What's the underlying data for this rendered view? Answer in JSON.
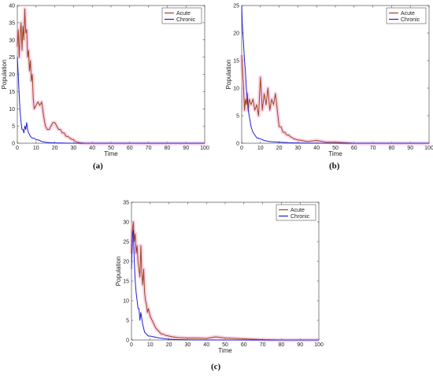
{
  "panels": [
    {
      "id": "a",
      "caption": "(a)",
      "colors": {
        "acute": "#a0451e",
        "chronic": "#1f1fd6",
        "band": "#f2b3d8"
      },
      "chart_data": {
        "type": "line",
        "xlabel": "Time",
        "ylabel": "Population",
        "xlim": [
          0,
          100
        ],
        "ylim": [
          0,
          40
        ],
        "xticks": [
          0,
          10,
          20,
          30,
          40,
          50,
          60,
          70,
          80,
          90,
          100
        ],
        "yticks": [
          0,
          5,
          10,
          15,
          20,
          25,
          30,
          35,
          40
        ],
        "legend": "top-right",
        "series": [
          {
            "name": "Acute",
            "color": "#a0451e",
            "x": [
              0,
              0.5,
              1,
              1.5,
              2,
              2.5,
              3,
              3.5,
              4,
              4.5,
              5,
              5.5,
              6,
              6.5,
              7,
              7.5,
              8,
              8.5,
              9,
              10,
              11,
              12,
              13,
              14,
              15,
              16,
              17,
              18,
              19,
              20,
              21,
              22,
              23,
              24,
              25,
              26,
              27,
              28,
              29,
              30,
              31,
              32,
              34,
              36,
              40,
              50,
              60,
              70,
              80,
              90,
              100
            ],
            "y": [
              28,
              33,
              25,
              31,
              35,
              27,
              34,
              30,
              39,
              32,
              33,
              25,
              27,
              21,
              24,
              18,
              20,
              13,
              10,
              11,
              12,
              11,
              12,
              8,
              5,
              4,
              4,
              5,
              6,
              6,
              5,
              4,
              4,
              3,
              3,
              2,
              2,
              1.5,
              1.2,
              1,
              0.5,
              0.3,
              0.1,
              0,
              0,
              0,
              0,
              0,
              0,
              0,
              0
            ]
          },
          {
            "name": "Chronic",
            "color": "#1f1fd6",
            "x": [
              0,
              0.5,
              1,
              1.5,
              2,
              2.5,
              3,
              3.5,
              4,
              4.5,
              5,
              5.5,
              6,
              7,
              8,
              9,
              10,
              11,
              12,
              13,
              14,
              15,
              17,
              20,
              25,
              30,
              40,
              50,
              60,
              70,
              80,
              90,
              100
            ],
            "y": [
              25,
              20,
              14,
              9,
              6,
              4,
              4,
              3,
              5,
              4,
              6,
              4,
              3,
              2,
              1.5,
              1.5,
              1,
              1,
              0.8,
              0.5,
              0.4,
              0.3,
              0.2,
              0.1,
              0.05,
              0,
              0,
              0,
              0,
              0,
              0,
              0,
              0
            ]
          }
        ]
      }
    },
    {
      "id": "b",
      "caption": "(b)",
      "colors": {
        "acute": "#a0451e",
        "chronic": "#1f1fd6",
        "band": "#f2b3d8"
      },
      "chart_data": {
        "type": "line",
        "xlabel": "Time",
        "ylabel": "Population",
        "xlim": [
          0,
          100
        ],
        "ylim": [
          0,
          25
        ],
        "xticks": [
          0,
          10,
          20,
          30,
          40,
          50,
          60,
          70,
          80,
          90,
          100
        ],
        "yticks": [
          0,
          5,
          10,
          15,
          20,
          25
        ],
        "legend": "top-right",
        "series": [
          {
            "name": "Acute",
            "color": "#a0451e",
            "x": [
              0,
              0.5,
              1,
              1.5,
              2,
              2.5,
              3,
              3.5,
              4,
              5,
              6,
              7,
              8,
              9,
              10,
              11,
              12,
              13,
              14,
              15,
              16,
              17,
              18,
              19,
              20,
              21,
              22,
              23,
              24,
              25,
              26,
              27,
              28,
              30,
              32,
              35,
              40,
              45,
              50,
              60,
              70,
              80,
              90,
              100
            ],
            "y": [
              16,
              13,
              10,
              6,
              8,
              7,
              9,
              6,
              8,
              7,
              8,
              6,
              7,
              5,
              12,
              6,
              9,
              7,
              10,
              6,
              8,
              7,
              9,
              6,
              3,
              3,
              2,
              2,
              1.5,
              1.5,
              1.2,
              1,
              0.8,
              0.6,
              0.5,
              0.3,
              0.5,
              0.2,
              0.2,
              0,
              0,
              0,
              0,
              0
            ]
          },
          {
            "name": "Chronic",
            "color": "#1f1fd6",
            "x": [
              0,
              0.3,
              0.6,
              1,
              1.5,
              2,
              2.5,
              3,
              3.5,
              4,
              5,
              6,
              7,
              8,
              10,
              12,
              15,
              20,
              25,
              30,
              40,
              50,
              60,
              70,
              80,
              90,
              100
            ],
            "y": [
              25,
              22,
              20,
              18,
              15,
              13,
              10,
              8,
              6,
              5,
              3,
              2,
              1.5,
              1,
              0.8,
              0.5,
              0.3,
              0.2,
              0.1,
              0.05,
              0,
              0,
              0,
              0,
              0,
              0,
              0
            ]
          }
        ]
      }
    },
    {
      "id": "c",
      "caption": "(c)",
      "colors": {
        "acute": "#a0451e",
        "chronic": "#1f1fd6",
        "band": "#f2b3d8"
      },
      "chart_data": {
        "type": "line",
        "xlabel": "Time",
        "ylabel": "Population",
        "xlim": [
          0,
          100
        ],
        "ylim": [
          0,
          35
        ],
        "xticks": [
          0,
          10,
          20,
          30,
          40,
          50,
          60,
          70,
          80,
          90,
          100
        ],
        "yticks": [
          0,
          5,
          10,
          15,
          20,
          25,
          30,
          35
        ],
        "legend": "top-right",
        "series": [
          {
            "name": "Acute",
            "color": "#a0451e",
            "x": [
              0,
              0.5,
              1,
              1.5,
              2,
              2.5,
              3,
              3.5,
              4,
              4.5,
              5,
              5.5,
              6,
              6.5,
              7,
              7.5,
              8,
              8.5,
              9,
              10,
              11,
              12,
              13,
              14,
              15,
              16,
              17,
              18,
              20,
              22,
              25,
              30,
              35,
              40,
              45,
              50,
              55,
              60,
              65,
              70,
              80,
              90,
              100
            ],
            "y": [
              22,
              28,
              30,
              25,
              27,
              22,
              24,
              20,
              18,
              16,
              24,
              17,
              14,
              18,
              12,
              10,
              9,
              7,
              8,
              6,
              5,
              4,
              3,
              2.5,
              2,
              1.5,
              1.5,
              1.2,
              1,
              0.8,
              0.6,
              0.5,
              0.5,
              0.4,
              0.8,
              0.5,
              0.4,
              0.3,
              0.2,
              0.1,
              0,
              0,
              0
            ]
          },
          {
            "name": "Chronic",
            "color": "#1f1fd6",
            "x": [
              0,
              0.5,
              1,
              1.5,
              2,
              2.5,
              3,
              3.5,
              4,
              4.5,
              5,
              6,
              7,
              8,
              9,
              10,
              12,
              15,
              20,
              25,
              30,
              40,
              50,
              60,
              70,
              80,
              90,
              100
            ],
            "y": [
              18,
              26,
              28,
              20,
              15,
              12,
              10,
              8,
              8,
              5,
              7,
              4,
              2,
              1.5,
              1,
              1,
              0.8,
              0.5,
              0.2,
              0.1,
              0.05,
              0,
              0,
              0,
              0,
              0,
              0,
              0
            ]
          }
        ]
      }
    }
  ]
}
